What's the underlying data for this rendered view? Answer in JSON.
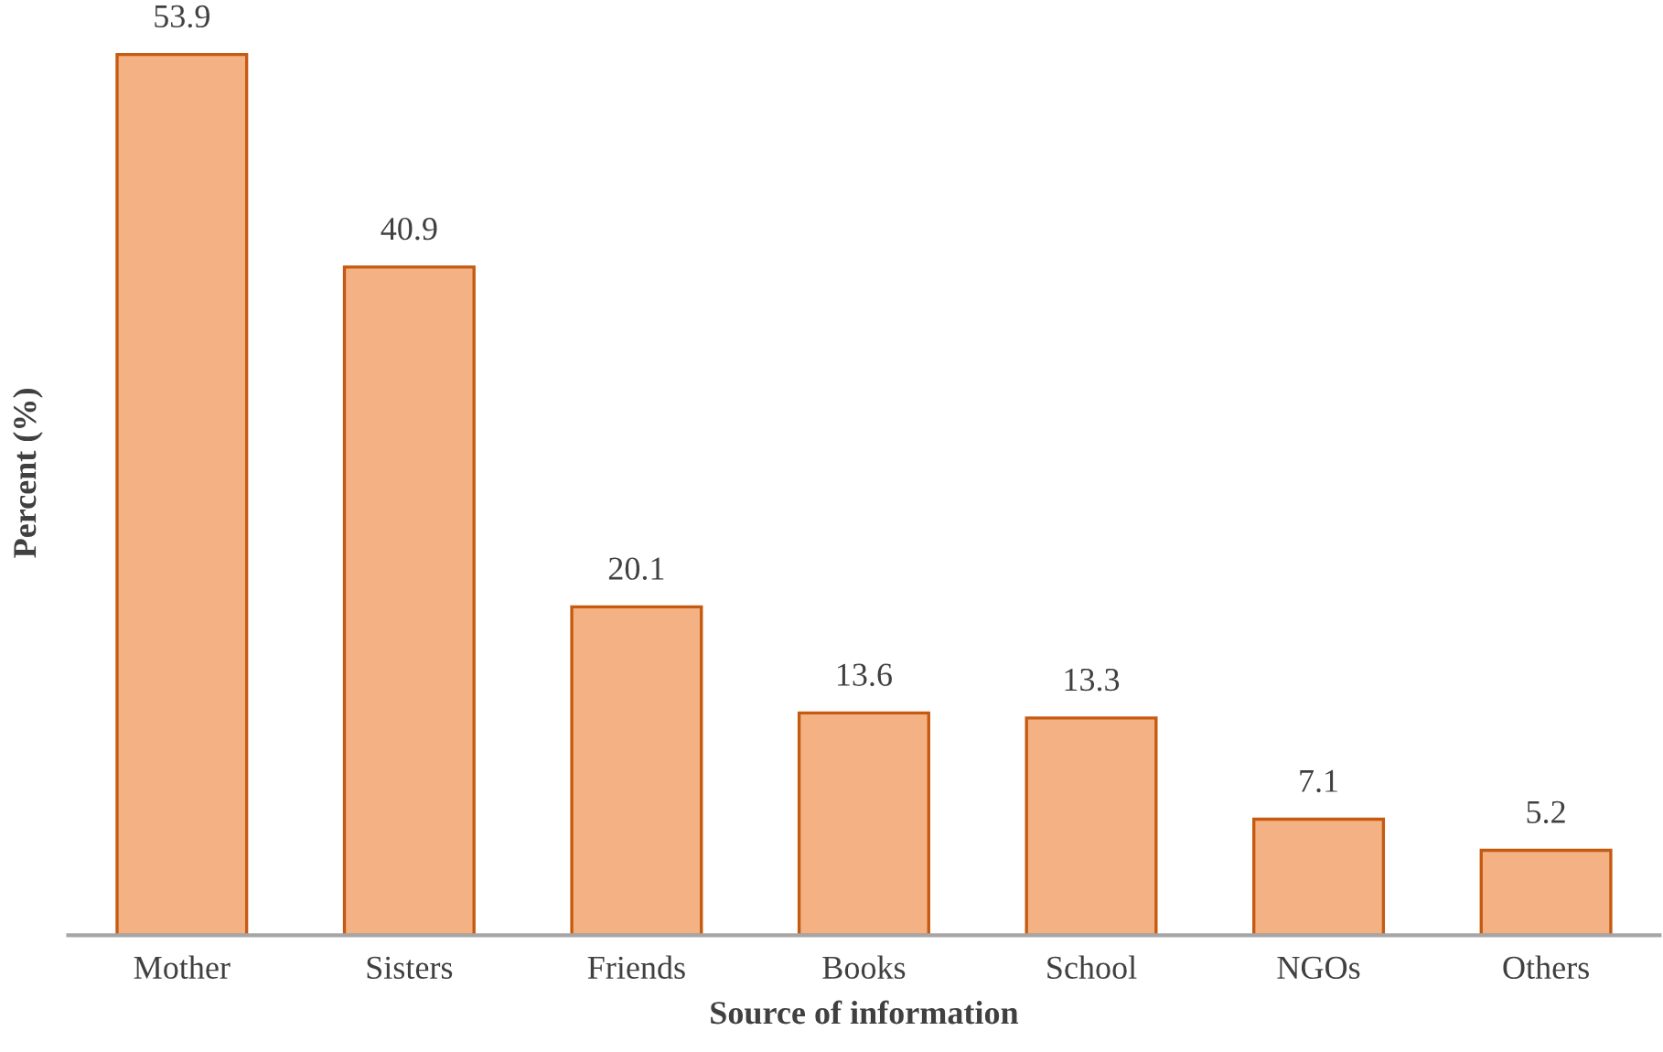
{
  "chart_data": {
    "type": "bar",
    "xlabel": "Source of information",
    "ylabel": "Percent (%)",
    "categories": [
      "Mother",
      "Sisters",
      "Friends",
      "Books",
      "School",
      "NGOs",
      "Others"
    ],
    "values": [
      53.9,
      40.9,
      20.1,
      13.6,
      13.3,
      7.1,
      5.2
    ],
    "color": "#f4b183",
    "data_labels": true,
    "tick_labels": "x",
    "grid": false,
    "legend": false
  }
}
